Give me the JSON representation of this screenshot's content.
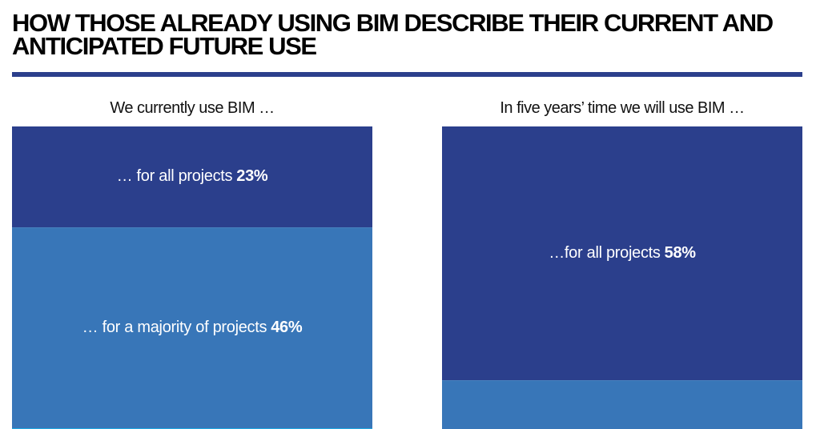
{
  "title": "How those already using BIM describe their current and anticipated future use",
  "chart_data": {
    "type": "bar",
    "stacked": true,
    "orientation": "vertical-stacked-blocks",
    "unit": "%",
    "bars": [
      {
        "title": "We currently use BIM …",
        "segments": [
          {
            "label": "… for all projects",
            "value": 23,
            "value_text": "23%",
            "color": "#2b3f8c"
          },
          {
            "label": "… for a majority of projects",
            "value": 46,
            "value_text": "46%",
            "color": "#3876b8"
          },
          {
            "label": "",
            "value": null,
            "value_text": "",
            "color": "#0ea1e0"
          }
        ]
      },
      {
        "title": "In five years’ time we will use BIM …",
        "segments": [
          {
            "label": "…for all projects",
            "value": 58,
            "value_text": "58%",
            "color": "#2b3f8c"
          },
          {
            "label": "",
            "value": null,
            "value_text": "",
            "color": "#3876b8"
          }
        ]
      }
    ]
  }
}
